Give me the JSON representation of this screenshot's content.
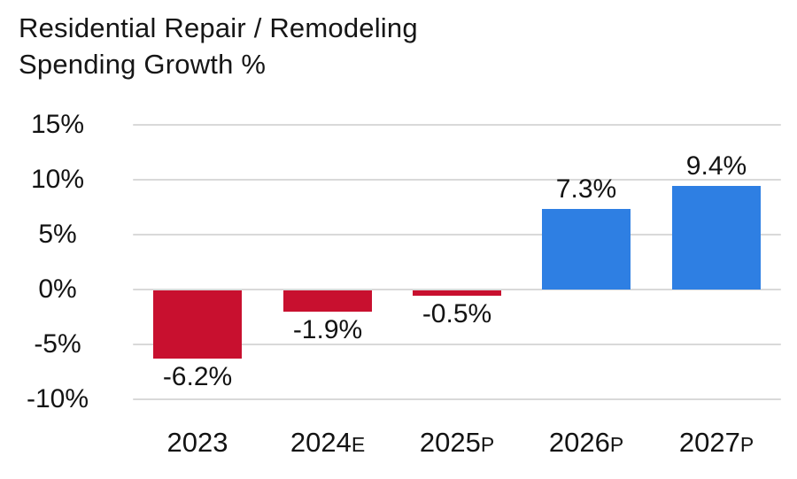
{
  "chart_data": {
    "type": "bar",
    "title": "Residential Repair / Remodeling Spending Growth %",
    "title_lines": [
      "Residential Repair / Remodeling",
      "Spending Growth %"
    ],
    "categories": [
      "2023",
      "2024E",
      "2025P",
      "2026P",
      "2027P"
    ],
    "category_parts": [
      {
        "year": "2023",
        "suffix": ""
      },
      {
        "year": "2024",
        "suffix": "E"
      },
      {
        "year": "2025",
        "suffix": "P"
      },
      {
        "year": "2026",
        "suffix": "P"
      },
      {
        "year": "2027",
        "suffix": "P"
      }
    ],
    "values": [
      -6.2,
      -1.9,
      -0.5,
      7.3,
      9.4
    ],
    "value_labels": [
      "-6.2%",
      "-1.9%",
      "-0.5%",
      "7.3%",
      "9.4%"
    ],
    "xlabel": "",
    "ylabel": "",
    "ylim": [
      -10,
      15
    ],
    "y_tick_values": [
      15,
      10,
      5,
      0,
      -5,
      -10
    ],
    "y_tick_labels": [
      "15%",
      "10%",
      "5%",
      "0%",
      "-5%",
      "-10%"
    ],
    "grid": true,
    "legend": "none",
    "colors": {
      "negative_bar": "#c8102f",
      "positive_bar": "#2e7fe3",
      "gridline": "#d9d9d9",
      "text": "#131313"
    }
  }
}
